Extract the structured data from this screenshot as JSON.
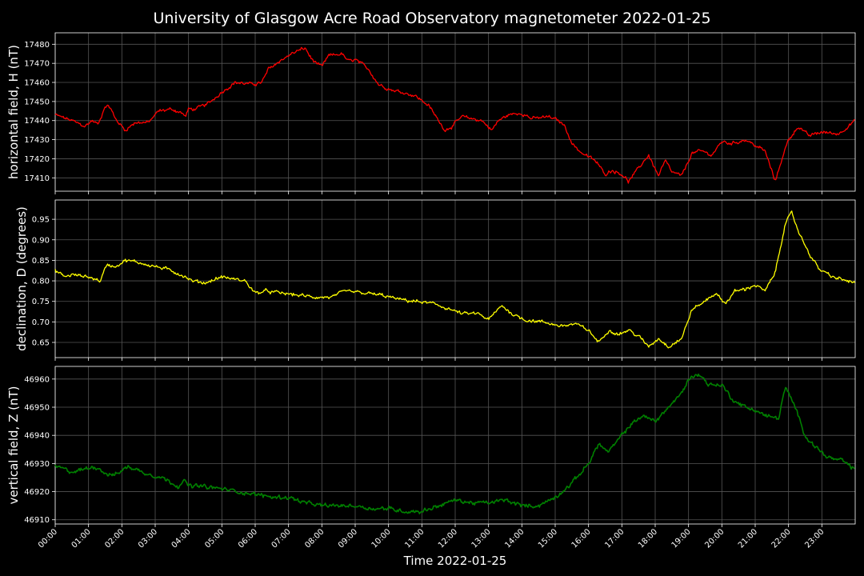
{
  "figure_title": "University of Glasgow Acre Road Observatory magnetometer 2022-01-25",
  "xlabel": "Time 2022-01-25",
  "chart_data": [
    {
      "type": "line",
      "ylabel": "horizontal field, H (nT)",
      "color": "#ff0000",
      "ylim": [
        17403,
        17486
      ],
      "yticks": [
        17410,
        17420,
        17430,
        17440,
        17450,
        17460,
        17470,
        17480
      ],
      "x_hours": [
        0,
        0.5,
        0.9,
        1.1,
        1.3,
        1.5,
        1.65,
        1.8,
        2.1,
        2.4,
        2.8,
        3.1,
        3.5,
        3.8,
        3.9,
        4.0,
        4.2,
        4.6,
        5.0,
        5.4,
        5.9,
        6.2,
        6.4,
        6.8,
        7.2,
        7.5,
        7.7,
        8.0,
        8.2,
        8.6,
        8.8,
        9.0,
        9.4,
        9.7,
        10.1,
        10.4,
        10.8,
        11.2,
        11.5,
        11.7,
        11.9,
        12.2,
        12.5,
        12.8,
        13.1,
        13.3,
        13.6,
        14.0,
        14.3,
        14.8,
        15.1,
        15.3,
        15.5,
        15.8,
        16.2,
        16.5,
        16.7,
        17.0,
        17.2,
        17.5,
        17.8,
        18.1,
        18.3,
        18.5,
        18.8,
        19.1,
        19.4,
        19.7,
        20.0,
        20.3,
        20.7,
        21.0,
        21.3,
        21.6,
        21.8,
        22.0,
        22.3,
        22.6,
        23.0,
        23.5,
        23.99
      ],
      "values": [
        17443,
        17440,
        17437,
        17440,
        17438,
        17448,
        17447,
        17441,
        17435,
        17439,
        17439,
        17445,
        17446,
        17444,
        17442,
        17446,
        17446,
        17449,
        17455,
        17460,
        17459,
        17460,
        17467,
        17472,
        17476,
        17478,
        17472,
        17468,
        17474,
        17475,
        17471,
        17472,
        17467,
        17459,
        17456,
        17455,
        17453,
        17448,
        17440,
        17435,
        17437,
        17442,
        17441,
        17440,
        17435,
        17440,
        17443,
        17444,
        17441,
        17442,
        17440,
        17437,
        17428,
        17423,
        17419,
        17412,
        17414,
        17412,
        17408,
        17415,
        17422,
        17411,
        17419,
        17413,
        17411,
        17423,
        17424,
        17422,
        17429,
        17428,
        17430,
        17427,
        17424,
        17408,
        17420,
        17430,
        17437,
        17432,
        17434,
        17433,
        17440
      ]
    },
    {
      "type": "line",
      "ylabel": "declination, D (degrees)",
      "color": "#ffff00",
      "ylim": [
        0.613,
        0.997
      ],
      "yticks": [
        "0.65",
        "0.70",
        "0.75",
        "0.80",
        "0.85",
        "0.90",
        "0.95"
      ],
      "x_hours": [
        0,
        0.3,
        0.5,
        1.0,
        1.35,
        1.55,
        1.8,
        2.1,
        2.5,
        3.0,
        3.5,
        3.9,
        4.1,
        4.5,
        5.0,
        5.3,
        5.7,
        6.0,
        6.3,
        6.8,
        7.3,
        7.8,
        8.3,
        8.7,
        9.3,
        9.8,
        10.3,
        10.8,
        11.3,
        11.7,
        12.2,
        12.7,
        13.0,
        13.4,
        13.7,
        14.1,
        14.6,
        15.2,
        15.6,
        16.0,
        16.3,
        16.6,
        16.9,
        17.2,
        17.5,
        17.8,
        18.1,
        18.4,
        18.8,
        19.1,
        19.4,
        19.8,
        20.1,
        20.4,
        20.7,
        21.0,
        21.3,
        21.6,
        21.9,
        22.1,
        22.3,
        22.6,
        22.9,
        23.3,
        23.99
      ],
      "values": [
        0.825,
        0.81,
        0.815,
        0.81,
        0.8,
        0.84,
        0.835,
        0.85,
        0.845,
        0.835,
        0.825,
        0.81,
        0.8,
        0.795,
        0.81,
        0.805,
        0.8,
        0.77,
        0.775,
        0.77,
        0.765,
        0.76,
        0.76,
        0.775,
        0.77,
        0.765,
        0.755,
        0.75,
        0.745,
        0.735,
        0.72,
        0.72,
        0.705,
        0.74,
        0.72,
        0.705,
        0.7,
        0.69,
        0.695,
        0.68,
        0.65,
        0.68,
        0.67,
        0.68,
        0.665,
        0.64,
        0.66,
        0.64,
        0.66,
        0.73,
        0.745,
        0.77,
        0.745,
        0.775,
        0.78,
        0.79,
        0.775,
        0.82,
        0.94,
        0.965,
        0.92,
        0.87,
        0.83,
        0.81,
        0.795
      ]
    },
    {
      "type": "line",
      "ylabel": "vertical field, Z (nT)",
      "color": "#008000",
      "ylim": [
        46908.5,
        46964.5
      ],
      "yticks": [
        46910,
        46920,
        46930,
        46940,
        46950,
        46960
      ],
      "x_hours": [
        0,
        0.5,
        0.9,
        1.2,
        1.6,
        1.8,
        2.2,
        2.6,
        3.2,
        3.7,
        3.85,
        4.0,
        4.3,
        5.0,
        5.5,
        6.0,
        6.6,
        7.0,
        7.5,
        8.0,
        8.5,
        9.0,
        9.5,
        10.0,
        10.5,
        11.0,
        11.5,
        12.0,
        12.5,
        13.0,
        13.5,
        14.0,
        14.5,
        15.0,
        15.5,
        16.0,
        16.3,
        16.6,
        16.8,
        17.2,
        17.6,
        18.0,
        18.4,
        18.8,
        19.0,
        19.3,
        19.6,
        20.0,
        20.3,
        20.7,
        21.0,
        21.3,
        21.7,
        21.9,
        22.2,
        22.5,
        22.8,
        23.2,
        23.6,
        23.99
      ],
      "values": [
        46929,
        46927,
        46928,
        46929,
        46926,
        46926,
        46929,
        46927,
        46925,
        46922,
        46924,
        46922,
        46922,
        46921,
        46920,
        46919,
        46918,
        46918,
        46916,
        46915,
        46915,
        46915,
        46914,
        46914,
        46913,
        46913,
        46915,
        46917,
        46916,
        46916,
        46917,
        46915,
        46915,
        46918,
        46923,
        46930,
        46937,
        46934,
        46937,
        46943,
        46947,
        46945,
        46950,
        46955,
        46960,
        46962,
        46958,
        46958,
        46953,
        46950,
        46949,
        46947,
        46946,
        46957,
        46950,
        46940,
        46936,
        46932,
        46931,
        46928
      ]
    }
  ],
  "x_ticks": [
    "00:00",
    "01:00",
    "02:00",
    "03:00",
    "04:00",
    "05:00",
    "06:00",
    "07:00",
    "08:00",
    "09:00",
    "10:00",
    "11:00",
    "12:00",
    "13:00",
    "14:00",
    "15:00",
    "16:00",
    "17:00",
    "18:00",
    "19:00",
    "20:00",
    "21:00",
    "22:00",
    "23:00"
  ]
}
